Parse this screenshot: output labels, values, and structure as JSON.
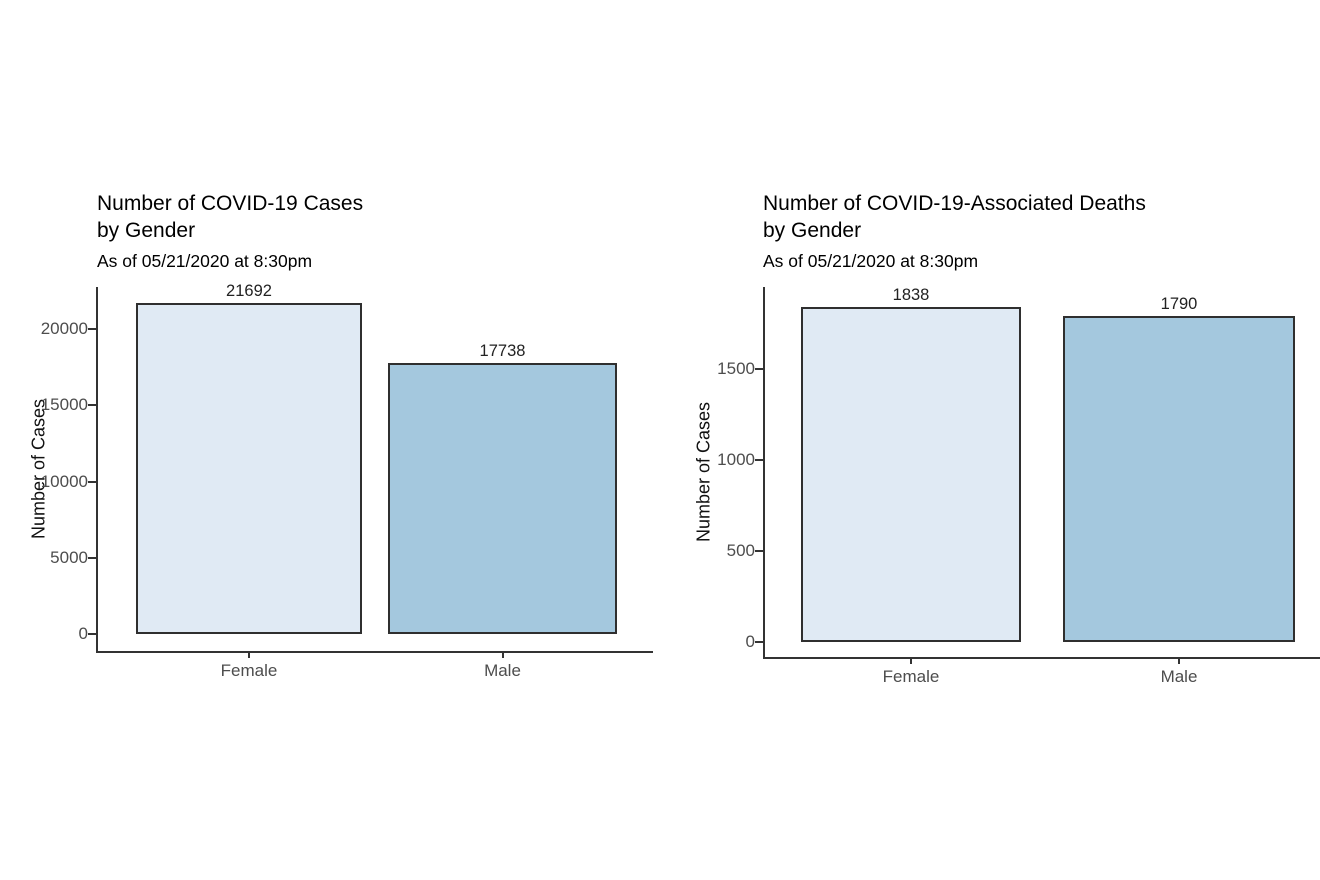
{
  "page": {
    "background": "#ffffff"
  },
  "chart_data": [
    {
      "type": "bar",
      "title": "Number of COVID-19 Cases\nby Gender",
      "subtitle": "As of 05/21/2020 at 8:30pm",
      "ylabel": "Number of Cases",
      "xlabel": "",
      "categories": [
        "Female",
        "Male"
      ],
      "values": [
        21692,
        17738
      ],
      "bar_labels": [
        "21692",
        "17738"
      ],
      "yticks": [
        0,
        5000,
        10000,
        15000,
        20000
      ],
      "ylim": [
        0,
        22800
      ],
      "grid": false,
      "legend": "none",
      "bar_fill_colors": [
        "#e0eaf4",
        "#a4c8de"
      ],
      "bar_outline_color": "#2f2f2f",
      "axis_color": "#333333",
      "axis_text_color": "#4d4d4d",
      "title_color": "#000000"
    },
    {
      "type": "bar",
      "title": "Number of COVID-19-Associated Deaths\nby Gender",
      "subtitle": "As of 05/21/2020 at 8:30pm",
      "ylabel": "Number of Cases",
      "xlabel": "",
      "categories": [
        "Female",
        "Male"
      ],
      "values": [
        1838,
        1790
      ],
      "bar_labels": [
        "1838",
        "1790"
      ],
      "yticks": [
        0,
        500,
        1000,
        1500
      ],
      "ylim": [
        0,
        1950
      ],
      "grid": false,
      "legend": "none",
      "bar_fill_colors": [
        "#e0eaf4",
        "#a4c8de"
      ],
      "bar_outline_color": "#2f2f2f",
      "axis_color": "#333333",
      "axis_text_color": "#4d4d4d",
      "title_color": "#000000"
    }
  ]
}
